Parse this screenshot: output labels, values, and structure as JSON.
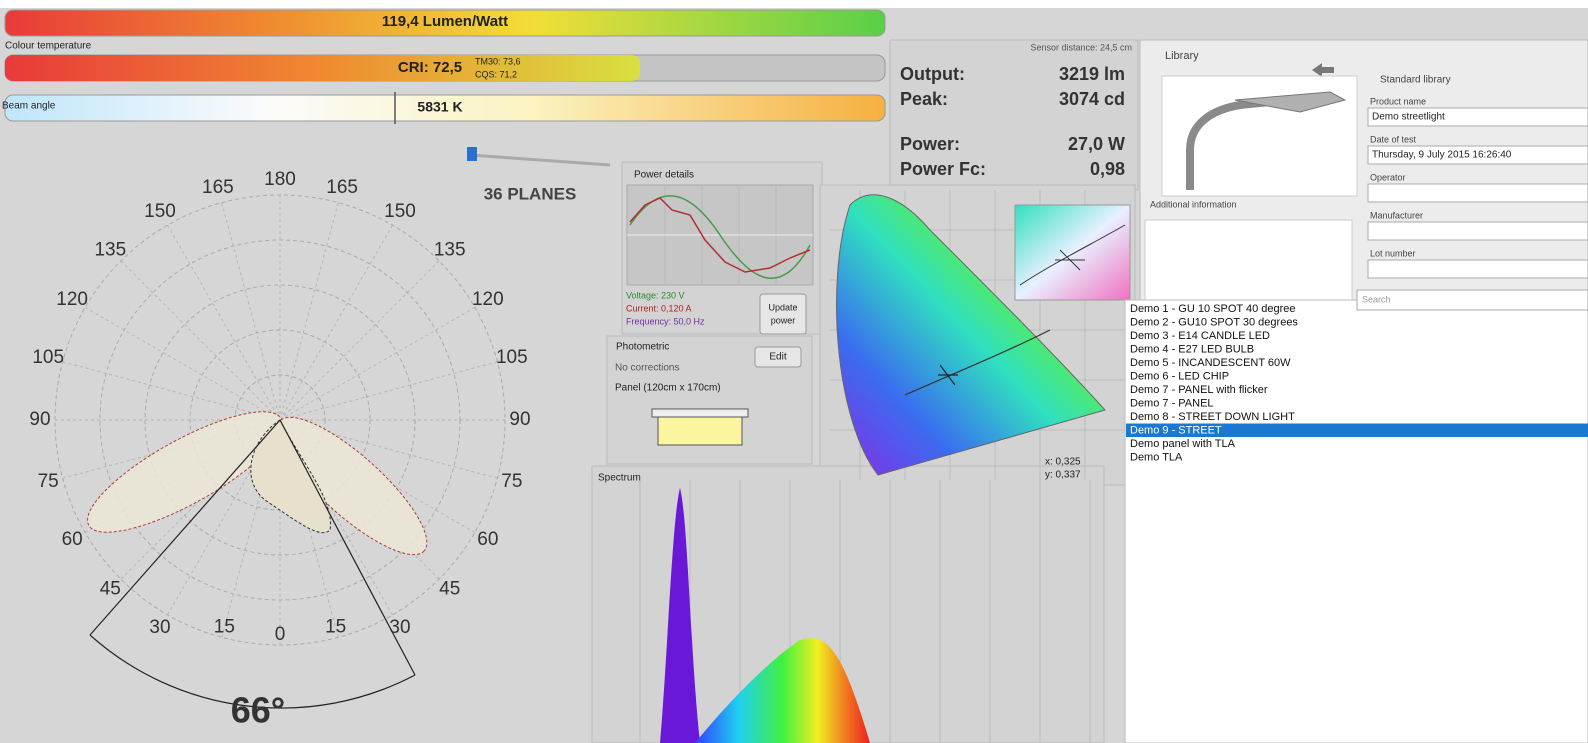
{
  "efficacy": "119,4 Lumen/Watt",
  "colour_temperature_label": "Colour temperature",
  "cri": "CRI: 72,5",
  "tm30": "TM30: 73,6",
  "cqs": "CQS: 71,2",
  "cct": "5831 K",
  "beam_angle_label": "Beam angle",
  "planes": "36 PLANES",
  "polar": {
    "top": "180",
    "bottom": "0",
    "left": [
      "165",
      "150",
      "135",
      "120",
      "105",
      "90",
      "75",
      "60",
      "45",
      "30",
      "15"
    ],
    "right": [
      "165",
      "150",
      "135",
      "120",
      "105",
      "90",
      "75",
      "60",
      "45",
      "30",
      "15"
    ]
  },
  "beam_angle": "66°",
  "sensor_distance": "Sensor distance: 24,5 cm",
  "readouts": {
    "output_label": "Output:",
    "output": "3219 lm",
    "peak_label": "Peak:",
    "peak": "3074 cd",
    "power_label": "Power:",
    "power": "27,0 W",
    "power_fc_label": "Power Fc:",
    "power_fc": "0,98"
  },
  "power_details": {
    "title": "Power details",
    "voltage": "Voltage: 230 V",
    "current": "Current: 0,120 A",
    "frequency": "Frequency: 50,0 Hz",
    "button": [
      "Update",
      "power"
    ]
  },
  "photometric": {
    "title": "Photometric",
    "button": "Edit",
    "corrections": "No corrections",
    "panel": "Panel (120cm x 170cm)"
  },
  "cie": {
    "x": "x: 0,325",
    "y": "y: 0,337"
  },
  "spectrum": {
    "title": "Spectrum"
  },
  "library": {
    "title": "Library",
    "source": "Standard library",
    "additional_information": "Additional information",
    "fields": [
      {
        "label": "Product name",
        "value": "Demo streetlight"
      },
      {
        "label": "Date of test",
        "value": "Thursday, 9 July 2015  16:26:40"
      },
      {
        "label": "Operator"
      },
      {
        "label": "Manufacturer"
      },
      {
        "label": "Lot number"
      }
    ],
    "search": "Search",
    "items": [
      "Demo 1 - GU 10 SPOT 40 degree",
      "Demo 2 - GU10 SPOT 30 degrees",
      "Demo 3 - E14 CANDLE LED",
      "Demo 4 - E27 LED BULB",
      "Demo 5 - INCANDESCENT 60W",
      "Demo 6 - LED CHIP",
      "Demo 7 - PANEL with flicker",
      "Demo 7 - PANEL",
      "Demo 8 - STREET DOWN LIGHT",
      "Demo 9 - STREET",
      "Demo panel with TLA",
      "Demo TLA"
    ],
    "selected_index": 9
  }
}
